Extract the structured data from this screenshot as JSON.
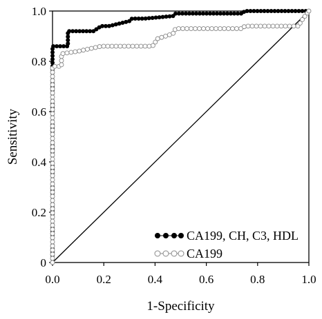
{
  "chart_data": {
    "type": "line",
    "subtype": "roc",
    "title": "",
    "xlabel": "1-Specificity",
    "ylabel": "Sensitivity",
    "xlim": [
      0,
      1
    ],
    "ylim": [
      0,
      1
    ],
    "xticks": [
      0.0,
      0.2,
      0.4,
      0.6,
      0.8,
      1.0
    ],
    "yticks": [
      0,
      0.2,
      0.4,
      0.6,
      0.8,
      1.0
    ],
    "xtick_labels": [
      "0.0",
      "0.2",
      "0.4",
      "0.6",
      "0.8",
      "1.0"
    ],
    "ytick_labels": [
      "0",
      "0.2",
      "0.4",
      "0.6",
      "0.8",
      "1.0"
    ],
    "grid": false,
    "legend_position": "bottom-right",
    "diagonal_reference": true,
    "series": [
      {
        "name": "CA199, CH, C3, HDL",
        "marker": "filled-circle",
        "color": "#000000",
        "x": [
          0,
          0,
          0.06,
          0.06,
          0.16,
          0.19,
          0.22,
          0.3,
          0.31,
          0.36,
          0.47,
          0.48,
          0.74,
          0.75,
          0.97,
          1.0
        ],
        "y": [
          0,
          0.86,
          0.86,
          0.92,
          0.92,
          0.94,
          0.94,
          0.96,
          0.97,
          0.97,
          0.98,
          0.99,
          0.99,
          1.0,
          1.0,
          1.0
        ]
      },
      {
        "name": "CA199",
        "marker": "open-circle",
        "color": "#888888",
        "x": [
          0,
          0,
          0.035,
          0.035,
          0.1,
          0.19,
          0.39,
          0.41,
          0.47,
          0.48,
          0.74,
          0.75,
          0.96,
          0.97,
          1.0
        ],
        "y": [
          0,
          0.78,
          0.78,
          0.83,
          0.84,
          0.86,
          0.86,
          0.89,
          0.91,
          0.93,
          0.93,
          0.94,
          0.94,
          0.96,
          1.0
        ]
      }
    ]
  }
}
